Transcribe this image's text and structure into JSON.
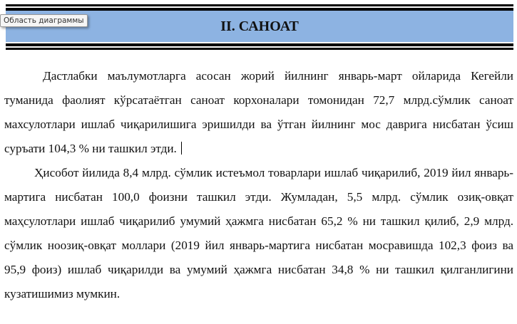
{
  "header": {
    "title": "II. САНОАТ"
  },
  "tooltip": "Область диаграммы",
  "paragraphs": [
    "Дастлабки маълумотларга асосан жорий йилнинг январь-март ойларида Кегейли туманида фаолият кўрсатаётган саноат корхоналари томонидан 72,7 млрд.сўмлик саноат махсулотлари ишлаб чиқарилишига эришилди ва ўтган йилнинг мос даврига нисбатан ўсиш суръати 104,3 % ни ташкил этди.",
    "Ҳисобот йилида 8,4 млрд. сўмлик истеъмол товарлари ишлаб чиқарилиб, 2019 йил январь-мартига нисбатан 100,0 фоизни ташкил этди. Жумладан, 5,5 млрд. сўмлик озиқ-овқат маҳсулотлари ишлаб чиқарилиб умумий ҳажмга нисбатан 65,2 % ни ташкил қилиб, 2,9 млрд. сўмлик ноозиқ-овқат моллари (2019 йил январь-мартига нисбатан мосравишда 102,3 фоиз ва 95,9 фоиз) ишлаб чиқарилди ва умумий ҳажмга нисбатан 34,8 % ни ташкил қилганлигини кузатишимиз мумкин."
  ]
}
